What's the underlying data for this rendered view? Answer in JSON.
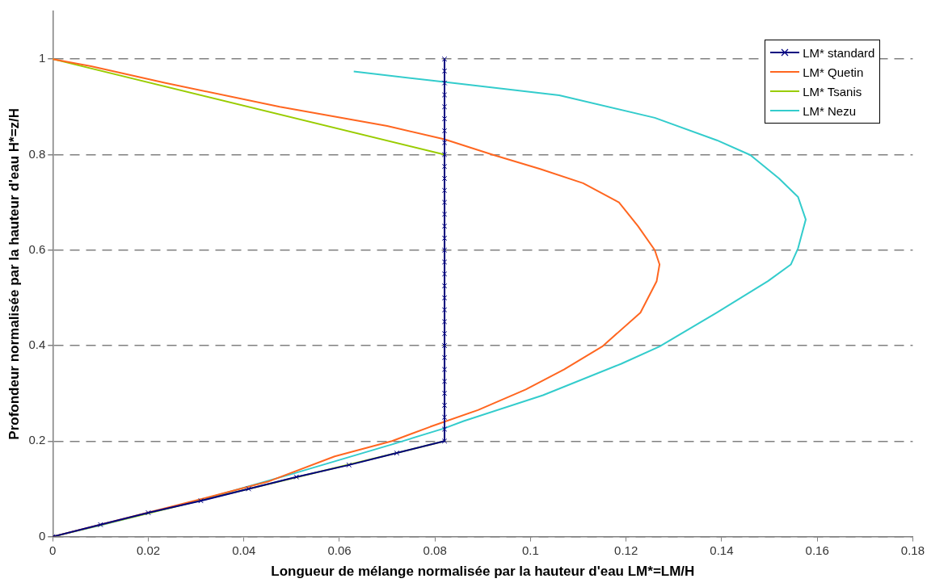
{
  "chart_data": {
    "type": "line",
    "xlabel": "Longueur de mélange normalisée par la hauteur d'eau LM*=LM/H",
    "ylabel": "Profondeur normalisée par la hauteur d'eau H*=z/H",
    "xlim": [
      0,
      0.18
    ],
    "xticks": [
      0,
      0.02,
      0.04,
      0.06,
      0.08,
      0.1,
      0.12,
      0.14,
      0.16,
      0.18
    ],
    "ylim": [
      0,
      1.1
    ],
    "yticks": [
      0,
      0.2,
      0.4,
      0.6,
      0.8,
      1
    ],
    "grid": "y",
    "line_style": "solid",
    "legend": "top right",
    "series": [
      {
        "name": "LM* standard",
        "color": "#000080",
        "marker": "cross",
        "x": [
          0,
          0.01,
          0.02,
          0.031,
          0.041,
          0.051,
          0.062,
          0.072,
          0.082,
          0.082,
          0.082,
          0.082,
          0.082,
          0.082,
          0.082,
          0.082,
          0.082,
          0.082,
          0.082,
          0.082,
          0.082,
          0.082,
          0.082,
          0.082,
          0.082,
          0.082,
          0.082,
          0.082,
          0.082,
          0.082,
          0.082,
          0.082,
          0.082,
          0.082,
          0.082,
          0.082,
          0.082,
          0.082,
          0.082,
          0.082,
          0.082
        ],
        "values": [
          0,
          0.025,
          0.05,
          0.075,
          0.1,
          0.125,
          0.15,
          0.175,
          0.2,
          0.225,
          0.25,
          0.275,
          0.3,
          0.325,
          0.35,
          0.375,
          0.4,
          0.425,
          0.45,
          0.475,
          0.5,
          0.525,
          0.55,
          0.575,
          0.6,
          0.625,
          0.65,
          0.675,
          0.7,
          0.725,
          0.75,
          0.775,
          0.8,
          0.825,
          0.85,
          0.875,
          0.9,
          0.925,
          0.95,
          0.975,
          1
        ]
      },
      {
        "name": "LM* Quetin",
        "color": "#ff6620",
        "marker": "none",
        "x": [
          0,
          0.01,
          0.03,
          0.045,
          0.059,
          0.071,
          0.079,
          0.089,
          0.099,
          0.107,
          0.115,
          0.123,
          0.1264,
          0.127,
          0.126,
          0.1225,
          0.1185,
          0.111,
          0.102,
          0.092,
          0.082,
          0.07,
          0.0475,
          0.0236,
          0.008,
          0
        ],
        "values": [
          0,
          0.025,
          0.076,
          0.115,
          0.168,
          0.2,
          0.23,
          0.265,
          0.308,
          0.35,
          0.398,
          0.469,
          0.535,
          0.57,
          0.6,
          0.65,
          0.7,
          0.74,
          0.77,
          0.8,
          0.832,
          0.86,
          0.9,
          0.95,
          0.985,
          1
        ]
      },
      {
        "name": "LM* Tsanis",
        "color": "#99cc00",
        "marker": "none",
        "x": [
          0,
          0.041,
          0.072,
          0.082,
          0.082,
          0
        ],
        "values": [
          0,
          0.1,
          0.175,
          0.2,
          0.8,
          1
        ]
      },
      {
        "name": "LM* Nezu",
        "color": "#33cccc",
        "marker": "none",
        "x": [
          0,
          0.01,
          0.0307,
          0.05,
          0.0713,
          0.082,
          0.086,
          0.1026,
          0.119,
          0.127,
          0.139,
          0.1497,
          0.1545,
          0.156,
          0.1576,
          0.156,
          0.152,
          0.146,
          0.139,
          0.126,
          0.106,
          0.0794,
          0.063
        ],
        "values": [
          0,
          0.024,
          0.076,
          0.131,
          0.194,
          0.227,
          0.242,
          0.296,
          0.362,
          0.398,
          0.469,
          0.535,
          0.57,
          0.604,
          0.664,
          0.711,
          0.75,
          0.799,
          0.83,
          0.877,
          0.924,
          0.955,
          0.974
        ]
      }
    ]
  }
}
